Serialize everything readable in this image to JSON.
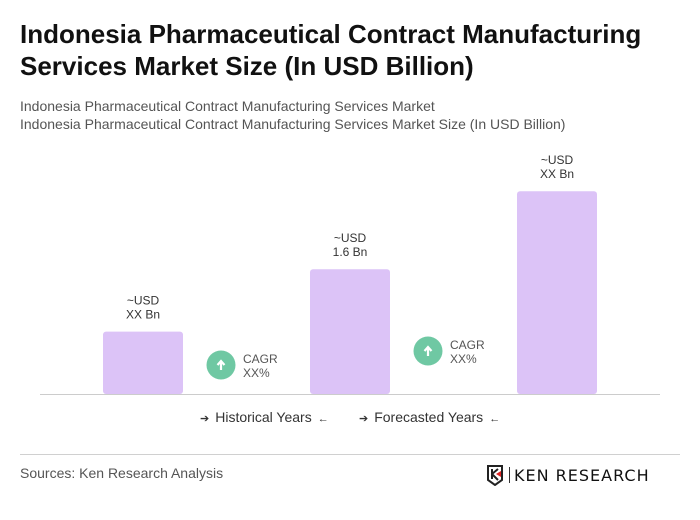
{
  "title": "Indonesia Pharmaceutical Contract Manufacturing Services Market Size (In USD Billion)",
  "subtitle1": "Indonesia Pharmaceutical Contract Manufacturing Services Market",
  "subtitle2": "Indonesia Pharmaceutical Contract Manufacturing Services Market Size (In USD Billion)",
  "chart_data": {
    "type": "bar",
    "categories": [
      "",
      "",
      ""
    ],
    "values": [
      0.8,
      1.6,
      2.6
    ],
    "data_labels": [
      [
        "~USD",
        "XX Bn"
      ],
      [
        "~USD",
        "1.6 Bn"
      ],
      [
        "~USD",
        "XX Bn"
      ]
    ],
    "cagr_annotations": [
      [
        "CAGR",
        "XX%"
      ],
      [
        "CAGR",
        "XX%"
      ]
    ],
    "bar_color": "#dcc3f7",
    "cagr_color": "#6fc8a3",
    "grid": false,
    "xlabel": "",
    "ylabel": ""
  },
  "legend": {
    "historical": "Historical Years",
    "forecasted": "Forecasted Years"
  },
  "source": "Sources: Ken Research Analysis",
  "logo": {
    "text": "KEN RESEARCH"
  }
}
